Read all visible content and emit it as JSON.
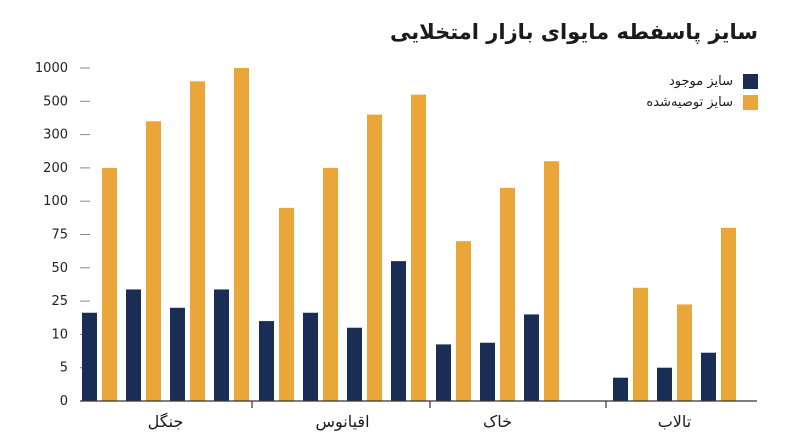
{
  "title": "سایز پاسفطه مایوای بازار امتخلایی",
  "colors": {
    "current": "#1a2e55",
    "recommended": "#eaa639",
    "axis": "#333333",
    "tick": "#888888"
  },
  "chart_data": {
    "type": "bar",
    "y_tick_labels": [
      "0",
      "5",
      "10",
      "25",
      "50",
      "75",
      "100",
      "200",
      "300",
      "500",
      "1000"
    ],
    "ylim": [
      0,
      10
    ],
    "y_scale_note": "ordinal",
    "legend": [
      {
        "name": "سایز موجود",
        "key": "current"
      },
      {
        "name": "سایز توصیه‌شده",
        "key": "recommended"
      }
    ],
    "groups": [
      {
        "label": "جنگل",
        "bars": [
          [
            2.65,
            7.0
          ],
          [
            3.35,
            8.4
          ],
          [
            2.8,
            9.6
          ],
          [
            3.35,
            10.0
          ]
        ]
      },
      {
        "label": "اقیانوس",
        "bars": [
          [
            2.4,
            5.8
          ],
          [
            2.65,
            7.0
          ],
          [
            2.2,
            8.6
          ],
          [
            4.2,
            9.2
          ]
        ]
      },
      {
        "label": "خاک",
        "bars": [
          [
            1.7,
            4.8
          ],
          [
            1.75,
            6.4
          ],
          [
            2.6,
            7.2
          ]
        ]
      },
      {
        "label": "تالاب",
        "bars": [
          [
            0.7,
            3.4
          ],
          [
            1.0,
            2.9
          ],
          [
            1.45,
            5.2
          ]
        ]
      }
    ]
  }
}
